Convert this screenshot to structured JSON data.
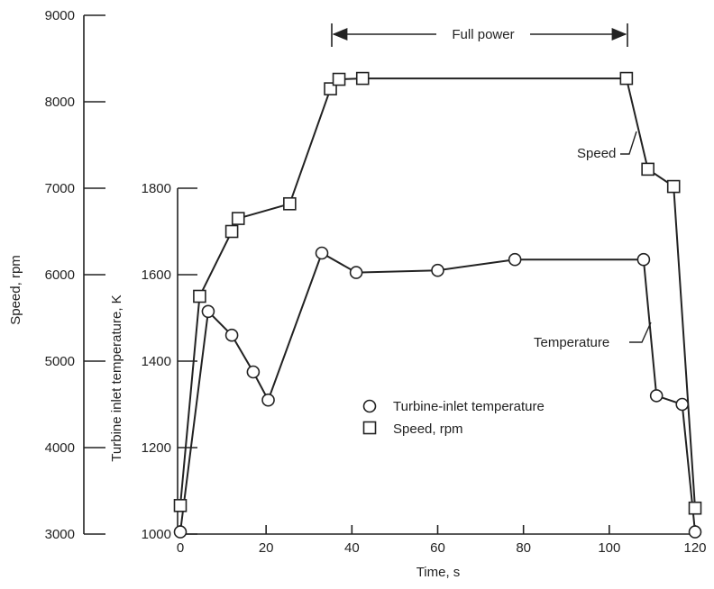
{
  "chart_data": {
    "type": "line",
    "x": {
      "label": "Time, s",
      "ticks": [
        0,
        20,
        40,
        60,
        80,
        100,
        120
      ],
      "range": [
        -1,
        121
      ]
    },
    "y_speed": {
      "label": "Speed,  rpm",
      "ticks": [
        3000,
        4000,
        5000,
        6000,
        7000,
        8000,
        9000
      ],
      "range": [
        3000,
        9000
      ]
    },
    "y_temperature": {
      "label": "Turbine inlet temperature,  K",
      "ticks": [
        1000,
        1200,
        1400,
        1600,
        1800
      ],
      "range": [
        1000,
        1800
      ]
    },
    "series": [
      {
        "name": "Turbine-inlet temperature",
        "axis": "temperature",
        "marker": "circle",
        "points": [
          [
            0,
            1005
          ],
          [
            6.5,
            1515
          ],
          [
            12,
            1460
          ],
          [
            17,
            1375
          ],
          [
            20.5,
            1310
          ],
          [
            33,
            1650
          ],
          [
            41,
            1605
          ],
          [
            60,
            1610
          ],
          [
            78,
            1635
          ],
          [
            108,
            1635
          ],
          [
            111,
            1320
          ],
          [
            117,
            1300
          ],
          [
            120,
            1005
          ]
        ]
      },
      {
        "name": "Speed, rpm",
        "axis": "speed",
        "marker": "square",
        "points": [
          [
            0,
            3330
          ],
          [
            4.5,
            5750
          ],
          [
            12,
            6500
          ],
          [
            13.5,
            6650
          ],
          [
            25.5,
            6820
          ],
          [
            35,
            8150
          ],
          [
            37,
            8260
          ],
          [
            42.5,
            8270
          ],
          [
            104,
            8270
          ],
          [
            109,
            7220
          ],
          [
            115,
            7020
          ],
          [
            120,
            3300
          ]
        ]
      }
    ],
    "legend": {
      "placement": "center",
      "items": [
        {
          "marker": "circle",
          "label": "Turbine-inlet temperature"
        },
        {
          "marker": "square",
          "label": "Speed,  rpm"
        }
      ]
    },
    "annotations": {
      "full_power": {
        "label": "Full power",
        "x_start": 35,
        "x_end": 104
      },
      "speed_label": "Speed",
      "temperature_label": "Temperature"
    }
  }
}
